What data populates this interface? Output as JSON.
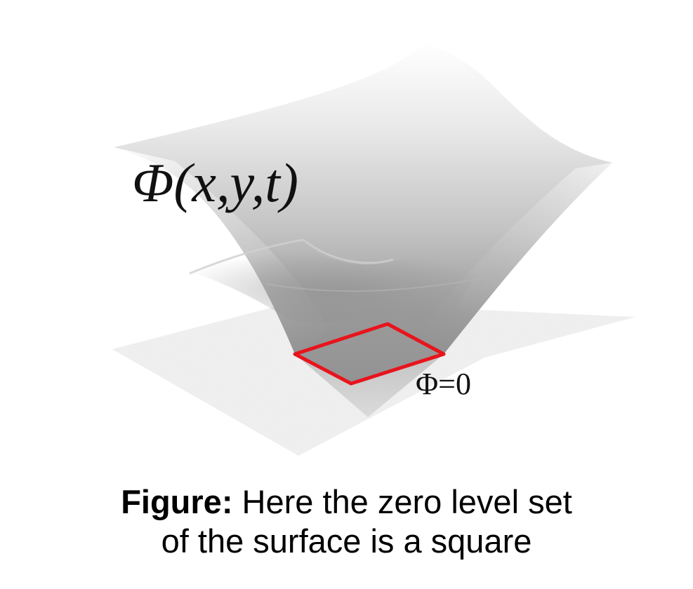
{
  "figure": {
    "surface_label": "Φ(x,y,t)",
    "zero_level_label": "Φ=0",
    "caption": {
      "prefix": "Figure:",
      "line1_rest": " Here the zero level set",
      "line2": "of the surface is a square"
    },
    "colors": {
      "level_set": "#e8141c",
      "plane": "#e6e6e6",
      "surface_light": "#f7f7f7",
      "surface_dark": "#8e8e8e",
      "text": "#111111"
    }
  }
}
